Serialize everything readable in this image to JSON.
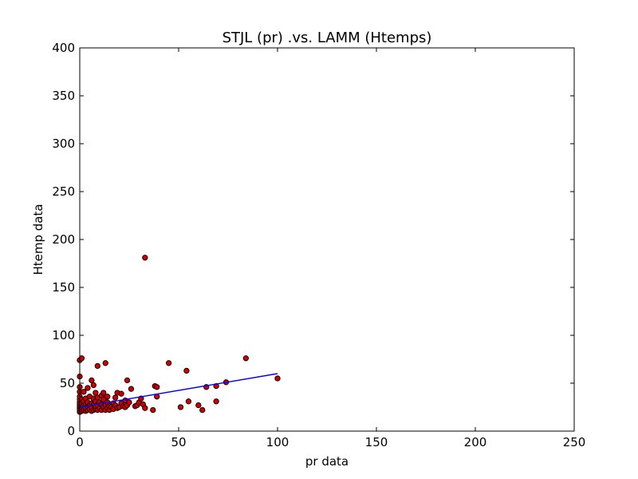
{
  "chart_data": {
    "type": "scatter",
    "title": "STJL (pr) .vs. LAMM (Htemps)",
    "xlabel": "pr data",
    "ylabel": "Htemp data",
    "xlim": [
      0,
      250
    ],
    "ylim": [
      0,
      400
    ],
    "xticks": [
      "0",
      "50",
      "100",
      "150",
      "200",
      "250"
    ],
    "yticks": [
      "0",
      "50",
      "100",
      "150",
      "200",
      "250",
      "300",
      "350",
      "400"
    ],
    "grid": false,
    "legend": "none",
    "point_color": "#cc0000",
    "point_edge": "#000000",
    "line_color": "#0000ff",
    "points": [
      [
        0,
        20
      ],
      [
        0,
        22
      ],
      [
        0,
        24
      ],
      [
        0,
        26
      ],
      [
        0,
        28
      ],
      [
        0,
        30
      ],
      [
        0,
        33
      ],
      [
        0,
        36
      ],
      [
        0,
        41
      ],
      [
        0,
        46
      ],
      [
        0,
        57
      ],
      [
        0,
        74
      ],
      [
        1,
        21
      ],
      [
        1,
        25
      ],
      [
        1,
        29
      ],
      [
        1,
        33
      ],
      [
        1,
        76
      ],
      [
        2,
        22
      ],
      [
        2,
        27
      ],
      [
        2,
        31
      ],
      [
        2,
        41
      ],
      [
        3,
        21
      ],
      [
        3,
        24
      ],
      [
        3,
        28
      ],
      [
        3,
        34
      ],
      [
        4,
        22
      ],
      [
        4,
        26
      ],
      [
        4,
        30
      ],
      [
        4,
        45
      ],
      [
        5,
        23
      ],
      [
        5,
        27
      ],
      [
        5,
        36
      ],
      [
        6,
        21
      ],
      [
        6,
        25
      ],
      [
        6,
        29
      ],
      [
        6,
        53
      ],
      [
        7,
        22
      ],
      [
        7,
        28
      ],
      [
        7,
        34
      ],
      [
        7,
        48
      ],
      [
        8,
        23
      ],
      [
        8,
        26
      ],
      [
        8,
        31
      ],
      [
        8,
        40
      ],
      [
        9,
        22
      ],
      [
        9,
        27
      ],
      [
        9,
        35
      ],
      [
        9,
        68
      ],
      [
        10,
        24
      ],
      [
        10,
        30
      ],
      [
        11,
        22
      ],
      [
        11,
        28
      ],
      [
        11,
        37
      ],
      [
        12,
        25
      ],
      [
        12,
        33
      ],
      [
        12,
        40
      ],
      [
        13,
        22
      ],
      [
        13,
        27
      ],
      [
        13,
        71
      ],
      [
        14,
        24
      ],
      [
        14,
        30
      ],
      [
        14,
        36
      ],
      [
        15,
        22
      ],
      [
        15,
        26
      ],
      [
        16,
        25
      ],
      [
        17,
        23
      ],
      [
        17,
        29
      ],
      [
        18,
        27
      ],
      [
        18,
        35
      ],
      [
        19,
        24
      ],
      [
        19,
        40
      ],
      [
        20,
        25
      ],
      [
        21,
        29
      ],
      [
        21,
        39
      ],
      [
        22,
        26
      ],
      [
        23,
        25
      ],
      [
        23,
        32
      ],
      [
        24,
        27
      ],
      [
        24,
        53
      ],
      [
        25,
        30
      ],
      [
        26,
        44
      ],
      [
        28,
        26
      ],
      [
        29,
        27
      ],
      [
        30,
        30
      ],
      [
        31,
        34
      ],
      [
        32,
        28
      ],
      [
        33,
        24
      ],
      [
        33,
        181
      ],
      [
        37,
        22
      ],
      [
        38,
        47
      ],
      [
        39,
        36
      ],
      [
        39,
        46
      ],
      [
        45,
        71
      ],
      [
        51,
        25
      ],
      [
        54,
        63
      ],
      [
        55,
        31
      ],
      [
        60,
        27
      ],
      [
        62,
        22
      ],
      [
        64,
        46
      ],
      [
        69,
        31
      ],
      [
        69,
        47
      ],
      [
        74,
        51
      ],
      [
        84,
        76
      ],
      [
        100,
        55
      ]
    ],
    "trend_line": {
      "x": [
        0,
        100
      ],
      "y": [
        25,
        60
      ]
    }
  }
}
